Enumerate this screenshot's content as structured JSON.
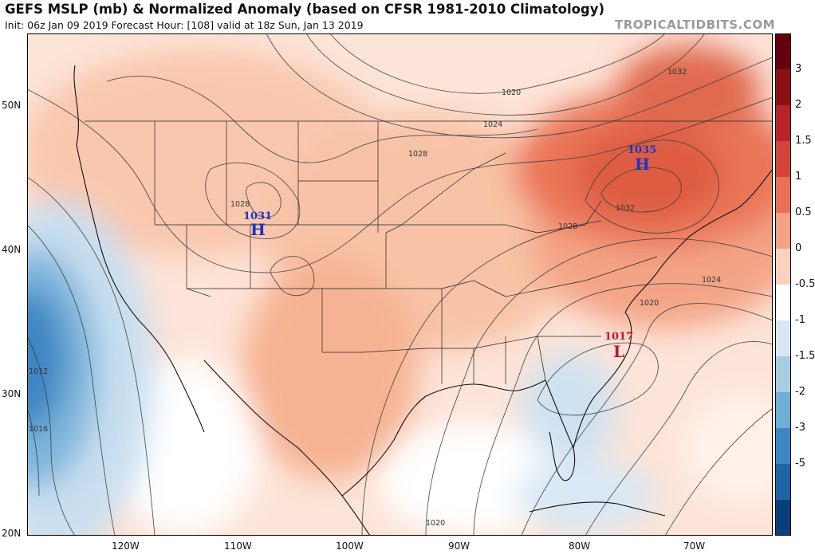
{
  "header": {
    "title": "GEFS MSLP (mb) & Normalized Anomaly (based on CFSR 1981-2010 Climatology)",
    "subtitle": "Init: 06z Jan 09 2019   Forecast Hour: [108]   valid at 18z Sun, Jan 13 2019",
    "site": "TROPICALTIDBITS.COM"
  },
  "axes": {
    "lat_labels": [
      "50N",
      "40N",
      "30N",
      "20N"
    ],
    "lon_labels": [
      "120W",
      "110W",
      "100W",
      "90W",
      "80W",
      "70W"
    ]
  },
  "colorbar": {
    "labels": [
      "3",
      "2",
      "1.5",
      "1",
      "0.5",
      "0",
      "-0.5",
      "-1",
      "-1.5",
      "-2",
      "-3",
      "-5"
    ],
    "colors": [
      "#67000d",
      "#8b1016",
      "#b8242a",
      "#d6433a",
      "#ea6f55",
      "#f4a185",
      "#fbd0bd",
      "#ffffff",
      "#d6e7f2",
      "#a8cde3",
      "#6faed6",
      "#3d88c4",
      "#1f63a8",
      "#0b3f7c"
    ]
  },
  "pressure_centers": [
    {
      "type": "H",
      "value": "1031",
      "color": "#1a34c4"
    },
    {
      "type": "H",
      "value": "1035",
      "color": "#1a34c4"
    },
    {
      "type": "L",
      "value": "1017",
      "color": "#c0142c"
    }
  ],
  "isobar_labels": [
    "1020",
    "1024",
    "1028",
    "1028",
    "1032",
    "1032",
    "1024",
    "1020",
    "1028",
    "1012",
    "1016",
    "1020"
  ]
}
